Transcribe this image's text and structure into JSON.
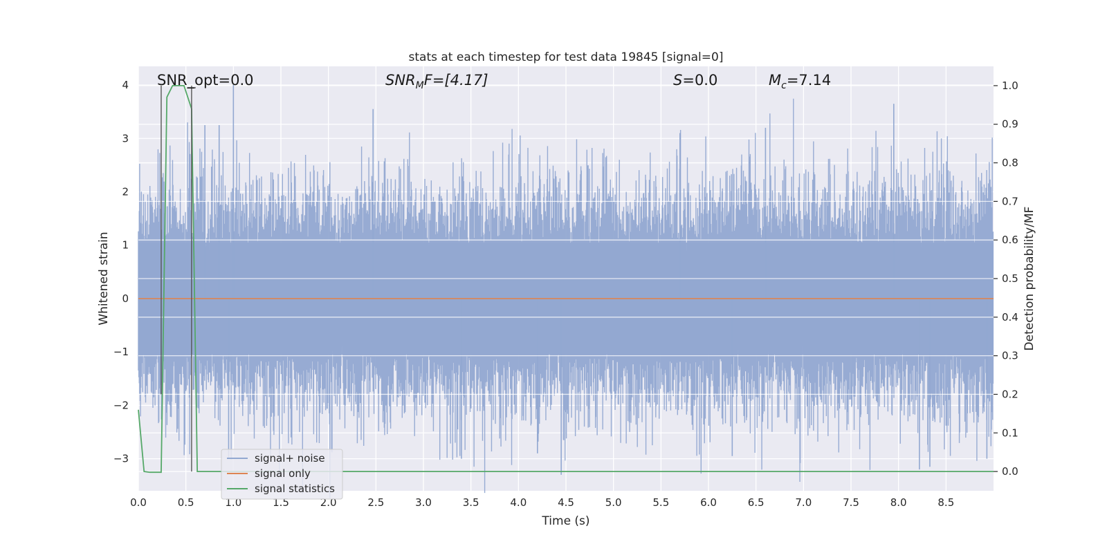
{
  "chart_data": {
    "type": "line",
    "title": "stats at each timestep for test data 19845 [signal=0]",
    "xlabel": "Time (s)",
    "ylabel_left": "Whitened strain",
    "ylabel_right": "Detection probability/MF",
    "xlim": [
      0,
      9
    ],
    "ylim_left": [
      -3.6,
      4.35
    ],
    "ylim_right": [
      -0.05,
      1.05
    ],
    "x_ticks": [
      "0.0",
      "0.5",
      "1.0",
      "1.5",
      "2.0",
      "2.5",
      "3.0",
      "3.5",
      "4.0",
      "4.5",
      "5.0",
      "5.5",
      "6.0",
      "6.5",
      "7.0",
      "7.5",
      "8.0",
      "8.5"
    ],
    "x_tick_values": [
      0,
      0.5,
      1,
      1.5,
      2,
      2.5,
      3,
      3.5,
      4,
      4.5,
      5,
      5.5,
      6,
      6.5,
      7,
      7.5,
      8,
      8.5
    ],
    "y_left_ticks": [
      "−3",
      "−2",
      "−1",
      "0",
      "1",
      "2",
      "3",
      "4"
    ],
    "y_left_tick_values": [
      -3,
      -2,
      -1,
      0,
      1,
      2,
      3,
      4
    ],
    "y_right_ticks": [
      "0.0",
      "0.1",
      "0.2",
      "0.3",
      "0.4",
      "0.5",
      "0.6",
      "0.7",
      "0.8",
      "0.9",
      "1.0"
    ],
    "y_right_tick_values": [
      0,
      0.1,
      0.2,
      0.3,
      0.4,
      0.5,
      0.6,
      0.7,
      0.8,
      0.9,
      1.0
    ],
    "grid": true,
    "legend_position": "lower-left",
    "annotations": {
      "snr_opt": "SNR_opt=0.0",
      "snr_mf_label": "SNR",
      "snr_mf_sub": "M",
      "snr_mf_rest": "F=[4.17]",
      "s_label": "S",
      "s_rest": "=0.0",
      "mc_label": "M",
      "mc_sub": "c",
      "mc_rest": "=7.14"
    },
    "series": [
      {
        "name": "signal+ noise",
        "color": "#92a8d1",
        "description_kind": "noise",
        "envelope_typical": 1.5,
        "spikes": [
          {
            "x": 1.0,
            "y": 4.0
          },
          {
            "x": 2.47,
            "y": 3.55
          },
          {
            "x": 7.95,
            "y": 3.65
          },
          {
            "x": 0.7,
            "y": 3.25
          },
          {
            "x": 0.85,
            "y": 3.25
          },
          {
            "x": 5.7,
            "y": 3.1
          },
          {
            "x": 6.6,
            "y": 3.2
          },
          {
            "x": 3.4,
            "y": -3.0
          },
          {
            "x": 4.45,
            "y": -3.3
          },
          {
            "x": 8.22,
            "y": -3.2
          },
          {
            "x": 8.33,
            "y": -3.15
          },
          {
            "x": 8.93,
            "y": -3.0
          },
          {
            "x": 0.95,
            "y": -3.0
          },
          {
            "x": 6.25,
            "y": -2.95
          },
          {
            "x": 4.2,
            "y": -2.9
          }
        ]
      },
      {
        "name": "signal only",
        "color": "#dd8452",
        "x": [
          0,
          9
        ],
        "y": [
          0,
          0
        ]
      },
      {
        "name": "signal statistics",
        "color": "#55a868",
        "axis": "right",
        "x": [
          0,
          0.06,
          0.12,
          0.24,
          0.3,
          0.36,
          0.42,
          0.48,
          0.54,
          0.56,
          0.62,
          0.68,
          9.0
        ],
        "y": [
          0.16,
          0.0,
          -0.002,
          -0.002,
          0.97,
          1.0,
          1.0,
          1.0,
          0.955,
          0.94,
          0.0,
          0.0,
          0.0
        ]
      }
    ],
    "markers": [
      {
        "x": 0.24,
        "y_top": 1.0,
        "y_bottom": 0.2
      },
      {
        "x": 0.56,
        "y_top": 1.0,
        "y_bottom": 0.0
      }
    ]
  }
}
